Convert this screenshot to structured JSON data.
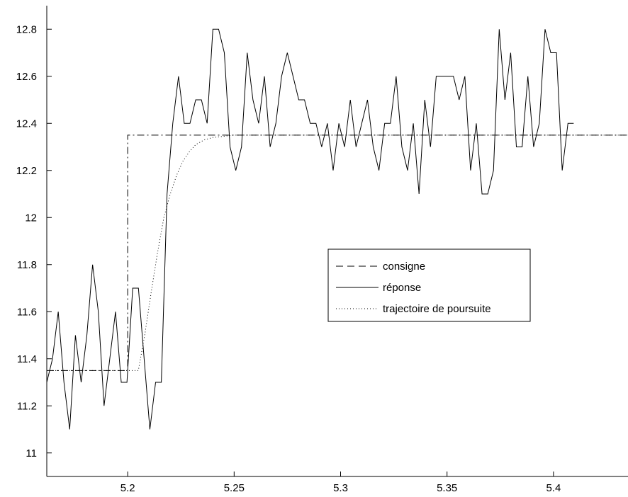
{
  "chart_data": {
    "type": "line",
    "title": "",
    "xlabel": "",
    "ylabel": "",
    "xlim": [
      5.162,
      5.435
    ],
    "ylim": [
      10.9,
      12.9
    ],
    "grid": false,
    "legend_position": "center-right",
    "x_ticks": [
      {
        "value": 5.2,
        "label": "5.2"
      },
      {
        "value": 5.25,
        "label": "5.25"
      },
      {
        "value": 5.3,
        "label": "5.3"
      },
      {
        "value": 5.35,
        "label": "5.35"
      },
      {
        "value": 5.4,
        "label": "5.4"
      }
    ],
    "y_ticks": [
      {
        "value": 11,
        "label": "11"
      },
      {
        "value": 11.2,
        "label": "11.2"
      },
      {
        "value": 11.4,
        "label": "11.4"
      },
      {
        "value": 11.6,
        "label": "11.6"
      },
      {
        "value": 11.8,
        "label": "11.8"
      },
      {
        "value": 12,
        "label": "12"
      },
      {
        "value": 12.2,
        "label": "12.2"
      },
      {
        "value": 12.4,
        "label": "12.4"
      },
      {
        "value": 12.6,
        "label": "12.6"
      },
      {
        "value": 12.8,
        "label": "12.8"
      }
    ],
    "series": [
      {
        "name": "consigne",
        "style": "dashed",
        "color": "#000000",
        "x": [
          5.162,
          5.2,
          5.2,
          5.435
        ],
        "y": [
          11.35,
          11.35,
          12.35,
          12.35
        ]
      },
      {
        "name": "réponse",
        "style": "solid",
        "color": "#000000",
        "x_start": 5.162,
        "x_step": 0.00269,
        "y": [
          11.3,
          11.4,
          11.6,
          11.3,
          11.1,
          11.5,
          11.3,
          11.5,
          11.8,
          11.6,
          11.2,
          11.4,
          11.6,
          11.3,
          11.3,
          11.7,
          11.7,
          11.4,
          11.1,
          11.3,
          11.3,
          12.1,
          12.4,
          12.6,
          12.4,
          12.4,
          12.5,
          12.5,
          12.4,
          12.8,
          12.8,
          12.7,
          12.3,
          12.2,
          12.3,
          12.7,
          12.5,
          12.4,
          12.6,
          12.3,
          12.4,
          12.6,
          12.7,
          12.6,
          12.5,
          12.5,
          12.4,
          12.4,
          12.3,
          12.4,
          12.2,
          12.4,
          12.3,
          12.5,
          12.3,
          12.4,
          12.5,
          12.3,
          12.2,
          12.4,
          12.4,
          12.6,
          12.3,
          12.2,
          12.4,
          12.1,
          12.5,
          12.3,
          12.6,
          12.6,
          12.6,
          12.6,
          12.5,
          12.6,
          12.2,
          12.4,
          12.1,
          12.1,
          12.2,
          12.8,
          12.5,
          12.7,
          12.3,
          12.3,
          12.6,
          12.3,
          12.4,
          12.8,
          12.7,
          12.7,
          12.2,
          12.4,
          12.4
        ]
      },
      {
        "name": "trajectoire de poursuite",
        "style": "dotted",
        "color": "#000000",
        "x": [
          5.162,
          5.205,
          5.208,
          5.211,
          5.214,
          5.217,
          5.22,
          5.223,
          5.226,
          5.229,
          5.232,
          5.236,
          5.24,
          5.245,
          5.25,
          5.26,
          5.435
        ],
        "y": [
          11.35,
          11.35,
          11.5,
          11.68,
          11.85,
          12.0,
          12.1,
          12.18,
          12.24,
          12.28,
          12.31,
          12.33,
          12.34,
          12.345,
          12.35,
          12.35,
          12.35
        ]
      }
    ],
    "legend": [
      {
        "label": "consigne",
        "style": "dashed"
      },
      {
        "label": "réponse",
        "style": "solid"
      },
      {
        "label": "trajectoire de poursuite",
        "style": "dotted"
      }
    ]
  }
}
